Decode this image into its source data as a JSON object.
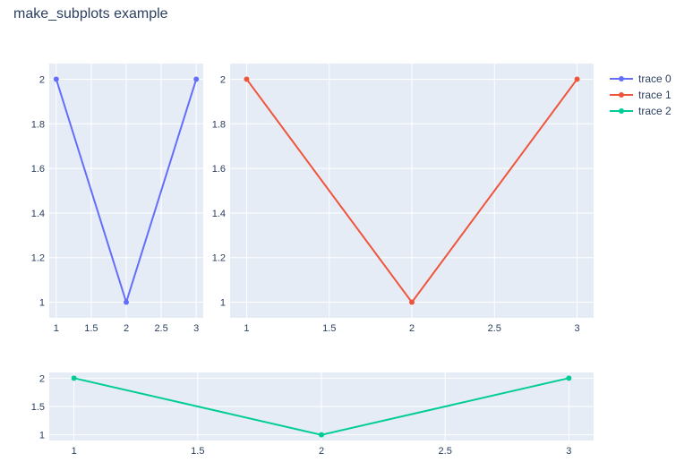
{
  "title": "make_subplots example",
  "chart_data": [
    {
      "type": "line",
      "subplot": "top-left",
      "series": [
        {
          "name": "trace 0",
          "x": [
            1,
            2,
            3
          ],
          "y": [
            2,
            1,
            2
          ],
          "color": "#636efa"
        }
      ],
      "xlim": [
        0.9,
        3.1
      ],
      "ylim": [
        0.93,
        2.07
      ],
      "xticks": [
        "1",
        "1.5",
        "2",
        "2.5",
        "3"
      ],
      "xtick_values": [
        1,
        1.5,
        2,
        2.5,
        3
      ],
      "yticks": [
        "1",
        "1.2",
        "1.4",
        "1.6",
        "1.8",
        "2"
      ],
      "ytick_values": [
        1,
        1.2,
        1.4,
        1.6,
        1.8,
        2
      ],
      "grid": true,
      "markers": true
    },
    {
      "type": "line",
      "subplot": "top-right",
      "series": [
        {
          "name": "trace 1",
          "x": [
            1,
            2,
            3
          ],
          "y": [
            2,
            1,
            2
          ],
          "color": "#ef553b"
        }
      ],
      "xlim": [
        0.9,
        3.1
      ],
      "ylim": [
        0.93,
        2.07
      ],
      "xticks": [
        "1",
        "1.5",
        "2",
        "2.5",
        "3"
      ],
      "xtick_values": [
        1,
        1.5,
        2,
        2.5,
        3
      ],
      "yticks": [
        "1",
        "1.2",
        "1.4",
        "1.6",
        "1.8",
        "2"
      ],
      "ytick_values": [
        1,
        1.2,
        1.4,
        1.6,
        1.8,
        2
      ],
      "grid": true,
      "markers": true
    },
    {
      "type": "line",
      "subplot": "bottom",
      "series": [
        {
          "name": "trace 2",
          "x": [
            1,
            2,
            3
          ],
          "y": [
            2,
            1,
            2
          ],
          "color": "#00cc96"
        }
      ],
      "xlim": [
        0.9,
        3.1
      ],
      "ylim": [
        0.9,
        2.1
      ],
      "xticks": [
        "1",
        "1.5",
        "2",
        "2.5",
        "3"
      ],
      "xtick_values": [
        1,
        1.5,
        2,
        2.5,
        3
      ],
      "yticks": [
        "1",
        "1.5",
        "2"
      ],
      "ytick_values": [
        1,
        1.5,
        2
      ],
      "grid": true,
      "markers": true
    }
  ],
  "legend": {
    "placement": "top-right",
    "items": [
      {
        "label": "trace 0",
        "color": "#636efa"
      },
      {
        "label": "trace 1",
        "color": "#ef553b"
      },
      {
        "label": "trace 2",
        "color": "#00cc96"
      }
    ]
  },
  "colors": {
    "plot_bg": "#e5ecf6",
    "grid": "#ffffff",
    "text": "#2a3f5f"
  }
}
